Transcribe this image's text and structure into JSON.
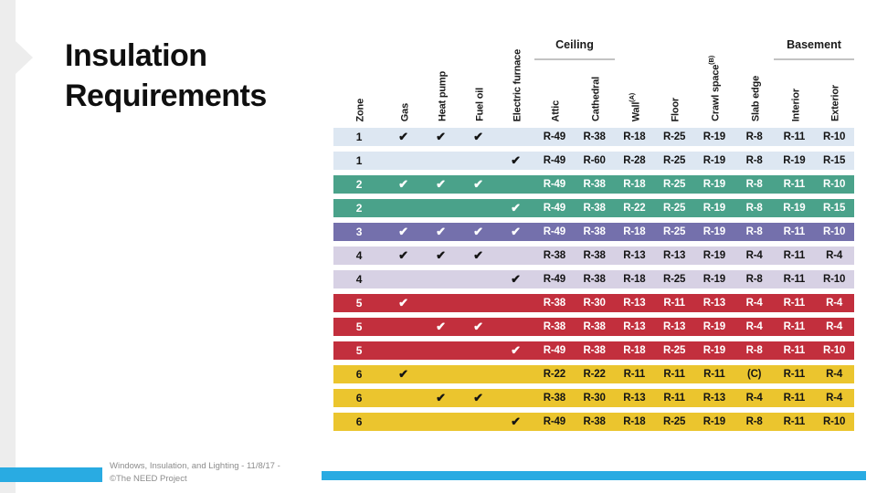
{
  "slide": {
    "title": "Insulation Requirements",
    "footer_line1": "Windows, Insulation, and Lighting - 11/8/17 -",
    "footer_line2": "©The NEED Project"
  },
  "colors": {
    "accent_bar": "#29abe2",
    "rail_gray": "#ededed",
    "row_blue": "#dde7f2",
    "row_teal": "#4aa28a",
    "row_purple": "#7470ac",
    "row_lavender": "#d7d1e4",
    "row_red": "#c22f3d",
    "row_yellow": "#ebc52e"
  },
  "table": {
    "check_glyph": "✔",
    "groups": [
      {
        "label": "Ceiling"
      },
      {
        "label": "Basement"
      }
    ],
    "columns": [
      {
        "label": "Zone",
        "sup": ""
      },
      {
        "label": "Gas",
        "sup": ""
      },
      {
        "label": "Heat pump",
        "sup": ""
      },
      {
        "label": "Fuel oil",
        "sup": ""
      },
      {
        "label": "Electric furnace",
        "sup": ""
      },
      {
        "label": "Attic",
        "sup": ""
      },
      {
        "label": "Cathedral",
        "sup": ""
      },
      {
        "label": "Wall",
        "sup": "(A)"
      },
      {
        "label": "Floor",
        "sup": ""
      },
      {
        "label": "Crawl space",
        "sup": "(B)"
      },
      {
        "label": "Slab edge",
        "sup": ""
      },
      {
        "label": "Interior",
        "sup": ""
      },
      {
        "label": "Exterior",
        "sup": ""
      }
    ],
    "rows": [
      {
        "zone": "1",
        "color": "blue",
        "checks": [
          1,
          1,
          1,
          0
        ],
        "values": [
          "R-49",
          "R-38",
          "R-18",
          "R-25",
          "R-19",
          "R-8",
          "R-11",
          "R-10"
        ]
      },
      {
        "zone": "1",
        "color": "blue",
        "checks": [
          0,
          0,
          0,
          1
        ],
        "values": [
          "R-49",
          "R-60",
          "R-28",
          "R-25",
          "R-19",
          "R-8",
          "R-19",
          "R-15"
        ]
      },
      {
        "zone": "2",
        "color": "teal",
        "checks": [
          1,
          1,
          1,
          0
        ],
        "values": [
          "R-49",
          "R-38",
          "R-18",
          "R-25",
          "R-19",
          "R-8",
          "R-11",
          "R-10"
        ]
      },
      {
        "zone": "2",
        "color": "teal",
        "checks": [
          0,
          0,
          0,
          1
        ],
        "values": [
          "R-49",
          "R-38",
          "R-22",
          "R-25",
          "R-19",
          "R-8",
          "R-19",
          "R-15"
        ]
      },
      {
        "zone": "3",
        "color": "purple",
        "checks": [
          1,
          1,
          1,
          1
        ],
        "values": [
          "R-49",
          "R-38",
          "R-18",
          "R-25",
          "R-19",
          "R-8",
          "R-11",
          "R-10"
        ]
      },
      {
        "zone": "4",
        "color": "lavender",
        "checks": [
          1,
          1,
          1,
          0
        ],
        "values": [
          "R-38",
          "R-38",
          "R-13",
          "R-13",
          "R-19",
          "R-4",
          "R-11",
          "R-4"
        ]
      },
      {
        "zone": "4",
        "color": "lavender",
        "checks": [
          0,
          0,
          0,
          1
        ],
        "values": [
          "R-49",
          "R-38",
          "R-18",
          "R-25",
          "R-19",
          "R-8",
          "R-11",
          "R-10"
        ]
      },
      {
        "zone": "5",
        "color": "red",
        "checks": [
          1,
          0,
          0,
          0
        ],
        "values": [
          "R-38",
          "R-30",
          "R-13",
          "R-11",
          "R-13",
          "R-4",
          "R-11",
          "R-4"
        ]
      },
      {
        "zone": "5",
        "color": "red",
        "checks": [
          0,
          1,
          1,
          0
        ],
        "values": [
          "R-38",
          "R-38",
          "R-13",
          "R-13",
          "R-19",
          "R-4",
          "R-11",
          "R-4"
        ]
      },
      {
        "zone": "5",
        "color": "red",
        "checks": [
          0,
          0,
          0,
          1
        ],
        "values": [
          "R-49",
          "R-38",
          "R-18",
          "R-25",
          "R-19",
          "R-8",
          "R-11",
          "R-10"
        ]
      },
      {
        "zone": "6",
        "color": "yellow",
        "checks": [
          1,
          0,
          0,
          0
        ],
        "values": [
          "R-22",
          "R-22",
          "R-11",
          "R-11",
          "R-11",
          "(C)",
          "R-11",
          "R-4"
        ]
      },
      {
        "zone": "6",
        "color": "yellow",
        "checks": [
          0,
          1,
          1,
          0
        ],
        "values": [
          "R-38",
          "R-30",
          "R-13",
          "R-11",
          "R-13",
          "R-4",
          "R-11",
          "R-4"
        ]
      },
      {
        "zone": "6",
        "color": "yellow",
        "checks": [
          0,
          0,
          0,
          1
        ],
        "values": [
          "R-49",
          "R-38",
          "R-18",
          "R-25",
          "R-19",
          "R-8",
          "R-11",
          "R-10"
        ]
      }
    ]
  }
}
